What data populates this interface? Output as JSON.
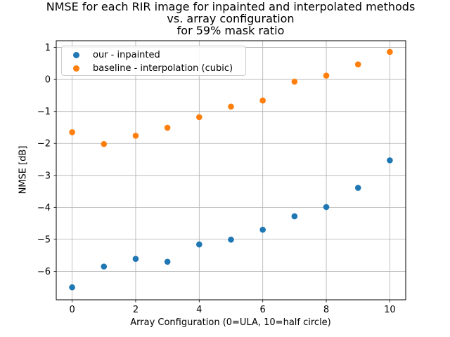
{
  "figure": {
    "title_lines": [
      "NMSE for each RIR image for inpainted and interpolated methods",
      "vs. array configuration",
      "for 59% mask ratio"
    ]
  },
  "chart_data": {
    "type": "scatter",
    "title": "NMSE for each RIR image for inpainted and interpolated methods vs. array configuration for 59% mask ratio",
    "xlabel": "Array Configuration (0=ULA, 10=half circle)",
    "ylabel": "NMSE [dB]",
    "x": [
      0,
      1,
      2,
      3,
      4,
      5,
      6,
      7,
      8,
      9,
      10
    ],
    "series": [
      {
        "name": "our - inpainted",
        "color": "#1f77b4",
        "values": [
          -6.5,
          -5.85,
          -5.61,
          -5.7,
          -5.16,
          -5.01,
          -4.7,
          -4.28,
          -3.99,
          -3.39,
          -2.53
        ]
      },
      {
        "name": "baseline - interpolation (cubic)",
        "color": "#ff7f0e",
        "values": [
          -1.65,
          -2.02,
          -1.76,
          -1.51,
          -1.18,
          -0.85,
          -0.66,
          -0.07,
          0.12,
          0.47,
          0.86
        ]
      }
    ],
    "xticks": [
      0,
      2,
      4,
      6,
      8,
      10
    ],
    "yticks": [
      1,
      0,
      -1,
      -2,
      -3,
      -4,
      -5,
      -6
    ],
    "xlim": [
      -0.5,
      10.5
    ],
    "ylim": [
      -6.89,
      1.21
    ],
    "grid": true,
    "grid_color": "#b0b0b0",
    "spine_color": "#000000",
    "background": "#ffffff",
    "legend_position": "upper left",
    "marker": "o"
  }
}
